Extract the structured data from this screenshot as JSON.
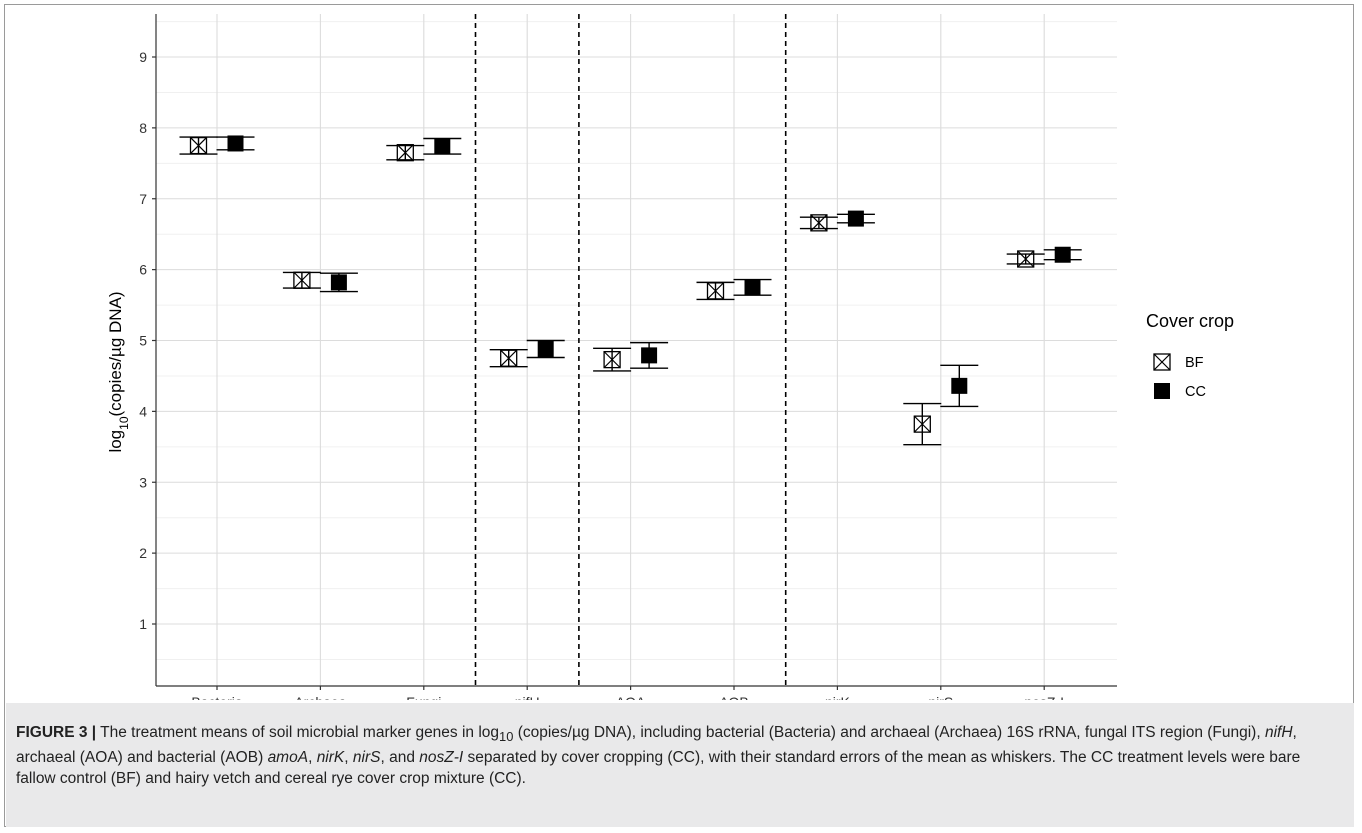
{
  "chart_data": {
    "type": "scatter",
    "ylabel_prefix": "log",
    "ylabel_sub": "10",
    "ylabel_suffix": "(copies/µg DNA)",
    "ylim": [
      0.1,
      9.3
    ],
    "yticks": [
      1,
      2,
      3,
      4,
      5,
      6,
      7,
      8,
      9
    ],
    "categories": [
      "Bacteria",
      "Archaea",
      "Fungi",
      "nifH",
      "AOA",
      "AOB",
      "nirK",
      "nirS",
      "nosZ-I"
    ],
    "separators_after": [
      "Fungi",
      "nifH",
      "AOB"
    ],
    "grid": true,
    "series": [
      {
        "name": "BF",
        "marker": "square-cross-open",
        "values": [
          7.75,
          5.85,
          7.65,
          4.75,
          4.73,
          5.7,
          6.66,
          3.82,
          6.15
        ],
        "se": [
          0.12,
          0.11,
          0.1,
          0.12,
          0.16,
          0.12,
          0.08,
          0.29,
          0.07
        ]
      },
      {
        "name": "CC",
        "marker": "square-filled",
        "values": [
          7.78,
          5.82,
          7.74,
          4.88,
          4.79,
          5.75,
          6.72,
          4.36,
          6.21
        ],
        "se": [
          0.09,
          0.13,
          0.11,
          0.12,
          0.18,
          0.11,
          0.06,
          0.29,
          0.07
        ]
      }
    ],
    "legend": {
      "title": "Cover crop",
      "position": "right"
    }
  },
  "caption": {
    "label": "FIGURE 3 |",
    "t1": " The treatment means of soil microbial marker genes in log",
    "t1_sub": "10",
    "t2": " (copies/µg DNA), including bacterial (Bacteria) and archaeal (Archaea) 16S rRNA, fungal ITS region (Fungi), ",
    "i1": "nifH",
    "t3": ", archaeal (AOA) and bacterial (AOB) ",
    "i2": "amoA",
    "t4": ", ",
    "i3": "nirK",
    "t5": ", ",
    "i4": "nirS",
    "t6": ", and ",
    "i5": "nosZ-I",
    "t7": " separated by cover cropping (CC), with their standard errors of the mean as whiskers. The CC treatment levels were bare fallow control (BF) and hairy vetch and cereal rye cover crop mixture (CC)."
  }
}
